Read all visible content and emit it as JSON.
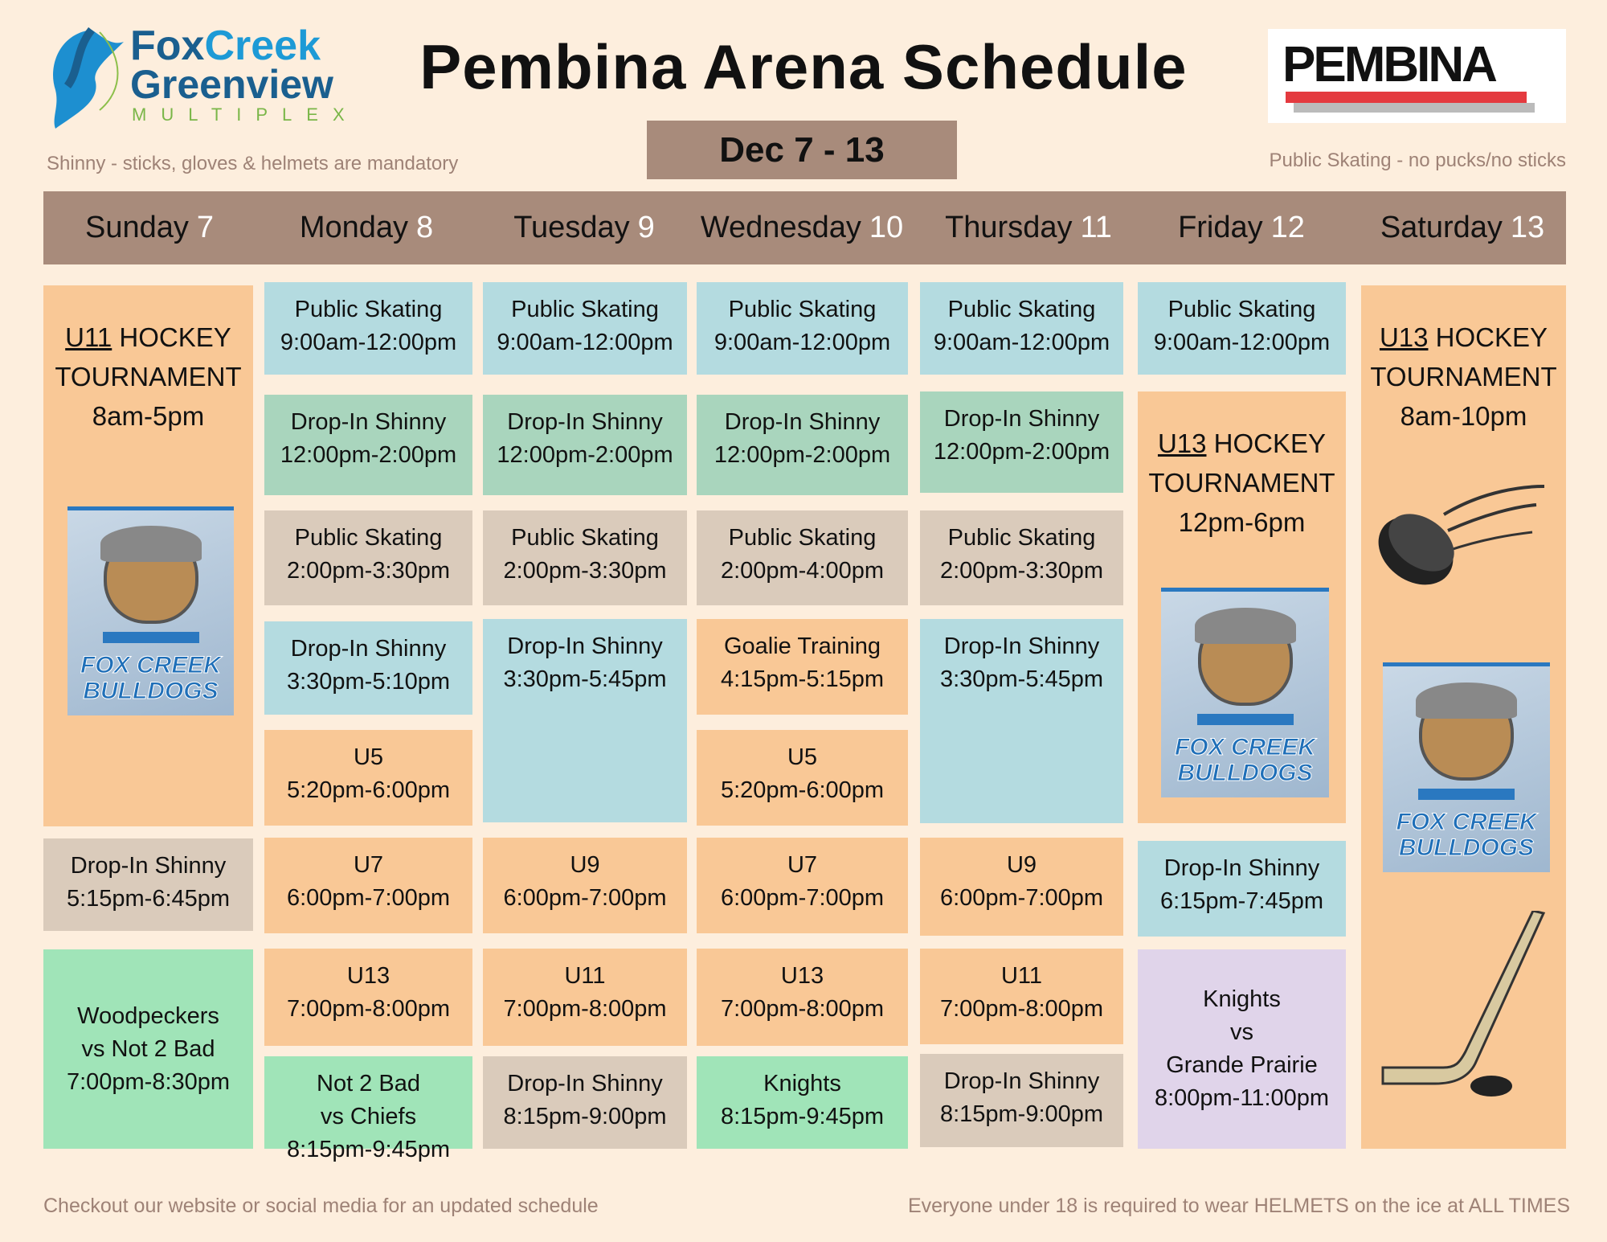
{
  "header": {
    "title": "Pembina Arena Schedule",
    "date_range": "Dec 7 - 13",
    "note_left": "Shinny - sticks, gloves & helmets are mandatory",
    "note_right": "Public Skating - no pucks/no sticks",
    "logo_left": {
      "line1a": "Fox",
      "line1b": "Creek",
      "line2": "Greenview",
      "line3": "MULTIPLEX"
    },
    "logo_right": "PEMBINA"
  },
  "days": [
    {
      "name": "Sunday",
      "num": "7"
    },
    {
      "name": "Monday",
      "num": "8"
    },
    {
      "name": "Tuesday",
      "num": "9"
    },
    {
      "name": "Wednesday",
      "num": "10"
    },
    {
      "name": "Thursday",
      "num": "11"
    },
    {
      "name": "Friday",
      "num": "12"
    },
    {
      "name": "Saturday",
      "num": "13"
    }
  ],
  "colors": {
    "public_skating": "#b4dbe0",
    "drop_in_shinny": "#a9d5bd",
    "tan": "#dacbbb",
    "minor_hockey": "#f9c896",
    "game": "#a0e4b8",
    "friday_game": "#e0d4ea",
    "header_bar": "#a88b7b",
    "background": "#fdeedd"
  },
  "events": [
    {
      "day": 0,
      "kind": "tournament",
      "division": "U11",
      "lines": [
        "HOCKEY",
        "TOURNAMENT",
        "8am-5pm"
      ]
    },
    {
      "day": 0,
      "kind": "tan",
      "lines": [
        "Drop-In Shinny",
        "5:15pm-6:45pm"
      ]
    },
    {
      "day": 0,
      "kind": "green",
      "lines": [
        "Woodpeckers",
        "vs  Not 2 Bad",
        "7:00pm-8:30pm"
      ]
    },
    {
      "day": 1,
      "kind": "blue",
      "lines": [
        "Public Skating",
        "9:00am-12:00pm"
      ]
    },
    {
      "day": 1,
      "kind": "teal",
      "lines": [
        "Drop-In Shinny",
        "12:00pm-2:00pm"
      ]
    },
    {
      "day": 1,
      "kind": "tan",
      "lines": [
        "Public Skating",
        "2:00pm-3:30pm"
      ]
    },
    {
      "day": 1,
      "kind": "blue",
      "lines": [
        "Drop-In Shinny",
        "3:30pm-5:10pm"
      ]
    },
    {
      "day": 1,
      "kind": "orange",
      "lines": [
        "U5",
        "5:20pm-6:00pm"
      ]
    },
    {
      "day": 1,
      "kind": "orange",
      "lines": [
        "U7",
        "6:00pm-7:00pm"
      ]
    },
    {
      "day": 1,
      "kind": "orange",
      "lines": [
        "U13",
        "7:00pm-8:00pm"
      ]
    },
    {
      "day": 1,
      "kind": "green",
      "lines": [
        "Not 2 Bad",
        "vs Chiefs",
        "8:15pm-9:45pm"
      ]
    },
    {
      "day": 2,
      "kind": "blue",
      "lines": [
        "Public Skating",
        "9:00am-12:00pm"
      ]
    },
    {
      "day": 2,
      "kind": "teal",
      "lines": [
        "Drop-In Shinny",
        "12:00pm-2:00pm"
      ]
    },
    {
      "day": 2,
      "kind": "tan",
      "lines": [
        "Public Skating",
        "2:00pm-3:30pm"
      ]
    },
    {
      "day": 2,
      "kind": "blue",
      "lines": [
        "Drop-In Shinny",
        "3:30pm-5:45pm"
      ]
    },
    {
      "day": 2,
      "kind": "orange",
      "lines": [
        "U9",
        "6:00pm-7:00pm"
      ]
    },
    {
      "day": 2,
      "kind": "orange",
      "lines": [
        "U11",
        "7:00pm-8:00pm"
      ]
    },
    {
      "day": 2,
      "kind": "tan",
      "lines": [
        "Drop-In Shinny",
        "8:15pm-9:00pm"
      ]
    },
    {
      "day": 3,
      "kind": "blue",
      "lines": [
        "Public Skating",
        "9:00am-12:00pm"
      ]
    },
    {
      "day": 3,
      "kind": "teal",
      "lines": [
        "Drop-In Shinny",
        "12:00pm-2:00pm"
      ]
    },
    {
      "day": 3,
      "kind": "tan",
      "lines": [
        "Public Skating",
        "2:00pm-4:00pm"
      ]
    },
    {
      "day": 3,
      "kind": "orange",
      "lines": [
        "Goalie Training",
        "4:15pm-5:15pm"
      ]
    },
    {
      "day": 3,
      "kind": "orange",
      "lines": [
        "U5",
        "5:20pm-6:00pm"
      ]
    },
    {
      "day": 3,
      "kind": "orange",
      "lines": [
        "U7",
        "6:00pm-7:00pm"
      ]
    },
    {
      "day": 3,
      "kind": "orange",
      "lines": [
        "U13",
        "7:00pm-8:00pm"
      ]
    },
    {
      "day": 3,
      "kind": "green",
      "lines": [
        "Knights",
        "8:15pm-9:45pm"
      ]
    },
    {
      "day": 4,
      "kind": "blue",
      "lines": [
        "Public Skating",
        "9:00am-12:00pm"
      ]
    },
    {
      "day": 4,
      "kind": "teal",
      "lines": [
        "Drop-In Shinny",
        "12:00pm-2:00pm"
      ]
    },
    {
      "day": 4,
      "kind": "tan",
      "lines": [
        "Public Skating",
        "2:00pm-3:30pm"
      ]
    },
    {
      "day": 4,
      "kind": "blue",
      "lines": [
        "Drop-In Shinny",
        "3:30pm-5:45pm"
      ]
    },
    {
      "day": 4,
      "kind": "orange",
      "lines": [
        "U9",
        "6:00pm-7:00pm"
      ]
    },
    {
      "day": 4,
      "kind": "orange",
      "lines": [
        "U11",
        "7:00pm-8:00pm"
      ]
    },
    {
      "day": 4,
      "kind": "tan",
      "lines": [
        "Drop-In Shinny",
        "8:15pm-9:00pm"
      ]
    },
    {
      "day": 5,
      "kind": "blue",
      "lines": [
        "Public Skating",
        "9:00am-12:00pm"
      ]
    },
    {
      "day": 5,
      "kind": "tournament",
      "division": "U13",
      "lines": [
        "HOCKEY",
        "TOURNAMENT",
        "12pm-6pm"
      ]
    },
    {
      "day": 5,
      "kind": "blue",
      "lines": [
        "Drop-In Shinny",
        "6:15pm-7:45pm"
      ]
    },
    {
      "day": 5,
      "kind": "lav",
      "lines": [
        "Knights",
        "vs",
        "Grande Prairie",
        "8:00pm-11:00pm"
      ]
    },
    {
      "day": 6,
      "kind": "tournament",
      "division": "U13",
      "lines": [
        "HOCKEY",
        "TOURNAMENT",
        "8am-10pm"
      ]
    }
  ],
  "bulldog_logo_text": [
    "FOX CREEK",
    "BULLDOGS"
  ],
  "footer": {
    "left": "Checkout our website or social media for an updated schedule",
    "right": "Everyone under 18 is required to wear HELMETS on the ice at ALL TIMES"
  }
}
